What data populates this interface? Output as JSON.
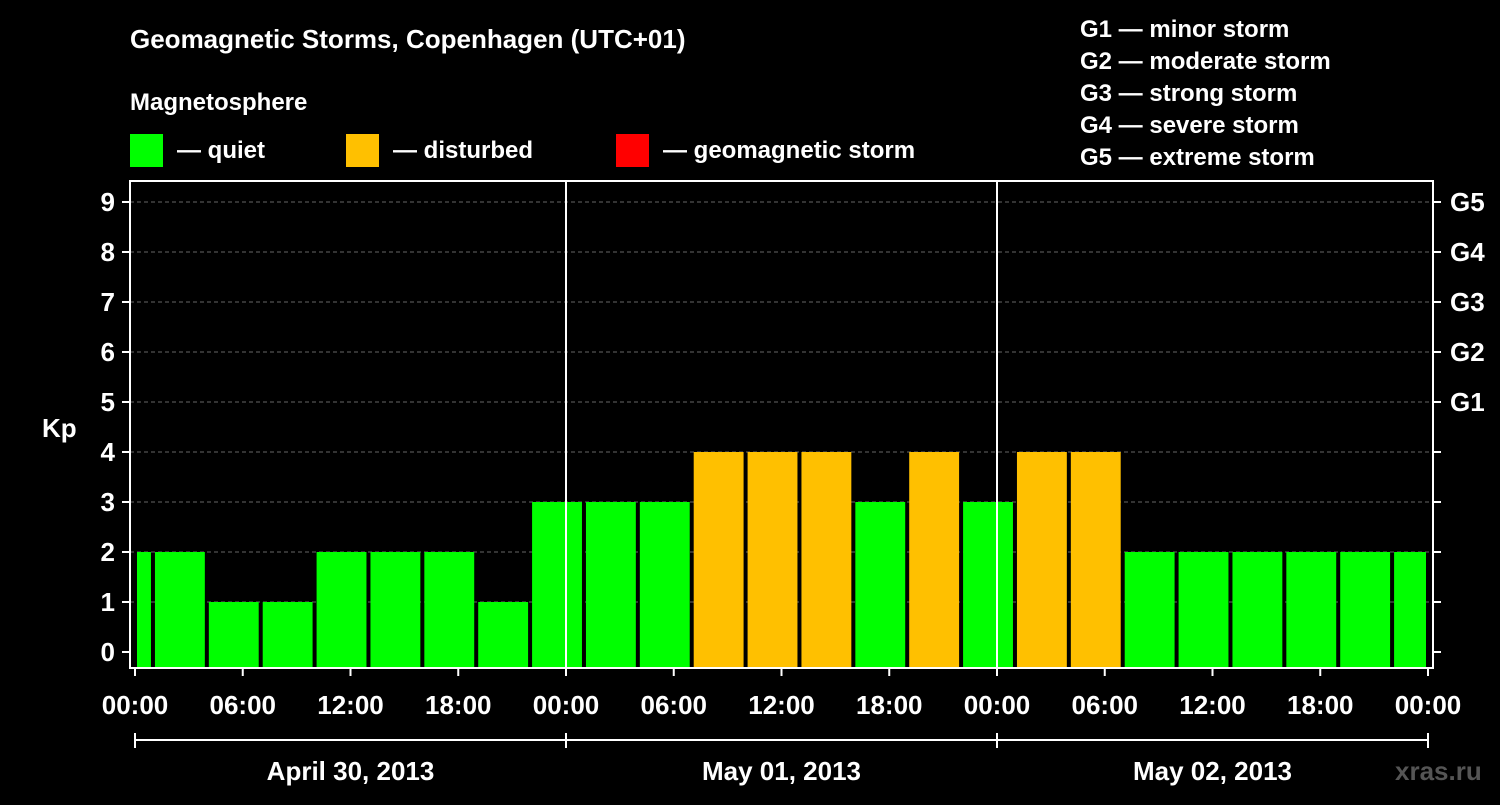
{
  "title": "Geomagnetic Storms, Copenhagen (UTC+01)",
  "magnetosphere_label": "Magnetosphere",
  "legend": [
    {
      "label": "— quiet",
      "color": "#00ff00"
    },
    {
      "label": "— disturbed",
      "color": "#ffc000"
    },
    {
      "label": "— geomagnetic storm",
      "color": "#ff0000"
    }
  ],
  "storm_scale": [
    "G1 — minor storm",
    "G2 — moderate storm",
    "G3 — strong storm",
    "G4 — severe storm",
    "G5 — extreme storm"
  ],
  "watermark": "xras.ru",
  "chart_data": {
    "type": "bar",
    "ylabel": "Kp",
    "ylim": [
      0,
      9
    ],
    "yticks": [
      0,
      1,
      2,
      3,
      4,
      5,
      6,
      7,
      8,
      9
    ],
    "right_ticks": [
      {
        "kp": 5,
        "label": "G1"
      },
      {
        "kp": 6,
        "label": "G2"
      },
      {
        "kp": 7,
        "label": "G3"
      },
      {
        "kp": 8,
        "label": "G4"
      },
      {
        "kp": 9,
        "label": "G5"
      }
    ],
    "x_range_hours": [
      0,
      72
    ],
    "x_tick_labels": [
      "00:00",
      "06:00",
      "12:00",
      "18:00",
      "00:00",
      "06:00",
      "12:00",
      "18:00",
      "00:00",
      "06:00",
      "12:00",
      "18:00",
      "00:00"
    ],
    "x_tick_hours": [
      0,
      6,
      12,
      18,
      24,
      30,
      36,
      42,
      48,
      54,
      60,
      66,
      72
    ],
    "dates": [
      {
        "label": "April 30, 2013",
        "start_hour": 0,
        "end_hour": 24
      },
      {
        "label": "May 01, 2013",
        "start_hour": 24,
        "end_hour": 48
      },
      {
        "label": "May 02, 2013",
        "start_hour": 48,
        "end_hour": 72
      }
    ],
    "bars": [
      {
        "start_hour": 0,
        "end_hour": 1,
        "kp": 2,
        "status": "quiet"
      },
      {
        "start_hour": 1,
        "end_hour": 4,
        "kp": 2,
        "status": "quiet"
      },
      {
        "start_hour": 4,
        "end_hour": 7,
        "kp": 1,
        "status": "quiet"
      },
      {
        "start_hour": 7,
        "end_hour": 10,
        "kp": 1,
        "status": "quiet"
      },
      {
        "start_hour": 10,
        "end_hour": 13,
        "kp": 2,
        "status": "quiet"
      },
      {
        "start_hour": 13,
        "end_hour": 16,
        "kp": 2,
        "status": "quiet"
      },
      {
        "start_hour": 16,
        "end_hour": 19,
        "kp": 2,
        "status": "quiet"
      },
      {
        "start_hour": 19,
        "end_hour": 22,
        "kp": 1,
        "status": "quiet"
      },
      {
        "start_hour": 22,
        "end_hour": 25,
        "kp": 3,
        "status": "quiet"
      },
      {
        "start_hour": 25,
        "end_hour": 28,
        "kp": 3,
        "status": "quiet"
      },
      {
        "start_hour": 28,
        "end_hour": 31,
        "kp": 3,
        "status": "quiet"
      },
      {
        "start_hour": 31,
        "end_hour": 34,
        "kp": 4,
        "status": "disturbed"
      },
      {
        "start_hour": 34,
        "end_hour": 37,
        "kp": 4,
        "status": "disturbed"
      },
      {
        "start_hour": 37,
        "end_hour": 40,
        "kp": 4,
        "status": "disturbed"
      },
      {
        "start_hour": 40,
        "end_hour": 43,
        "kp": 3,
        "status": "quiet"
      },
      {
        "start_hour": 43,
        "end_hour": 46,
        "kp": 4,
        "status": "disturbed"
      },
      {
        "start_hour": 46,
        "end_hour": 49,
        "kp": 3,
        "status": "quiet"
      },
      {
        "start_hour": 49,
        "end_hour": 52,
        "kp": 4,
        "status": "disturbed"
      },
      {
        "start_hour": 52,
        "end_hour": 55,
        "kp": 4,
        "status": "disturbed"
      },
      {
        "start_hour": 55,
        "end_hour": 58,
        "kp": 2,
        "status": "quiet"
      },
      {
        "start_hour": 58,
        "end_hour": 61,
        "kp": 2,
        "status": "quiet"
      },
      {
        "start_hour": 61,
        "end_hour": 64,
        "kp": 2,
        "status": "quiet"
      },
      {
        "start_hour": 64,
        "end_hour": 67,
        "kp": 2,
        "status": "quiet"
      },
      {
        "start_hour": 67,
        "end_hour": 70,
        "kp": 2,
        "status": "quiet"
      },
      {
        "start_hour": 70,
        "end_hour": 72,
        "kp": 2,
        "status": "quiet"
      }
    ],
    "status_colors": {
      "quiet": "#00ff00",
      "disturbed": "#ffc000",
      "storm": "#ff0000"
    },
    "grid": true,
    "day_separators_hours": [
      24,
      48
    ]
  }
}
